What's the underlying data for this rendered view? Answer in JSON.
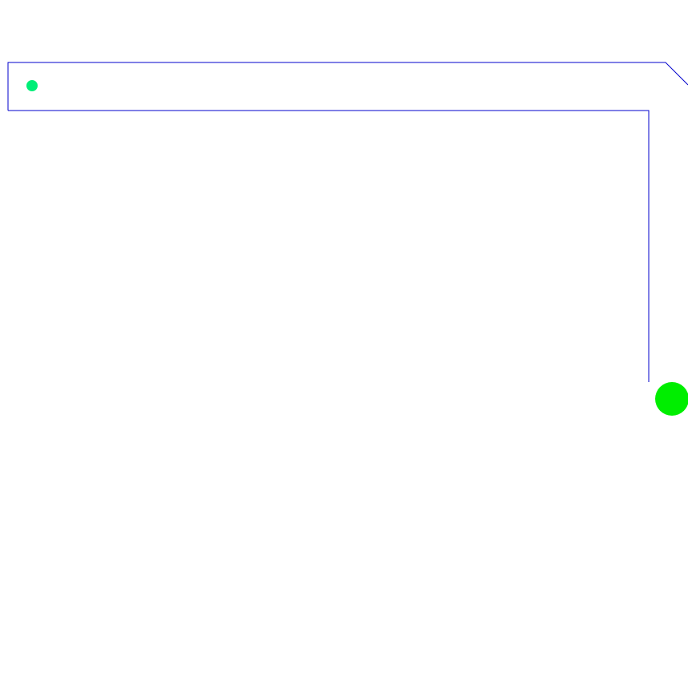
{
  "colors": {
    "background": "#ffffff",
    "track_stroke": "#0000cc",
    "start_marker": "#00ee77",
    "goal_marker": "#00ee00"
  },
  "icons": {
    "player": "small-dot-icon",
    "goal": "large-dot-icon"
  }
}
